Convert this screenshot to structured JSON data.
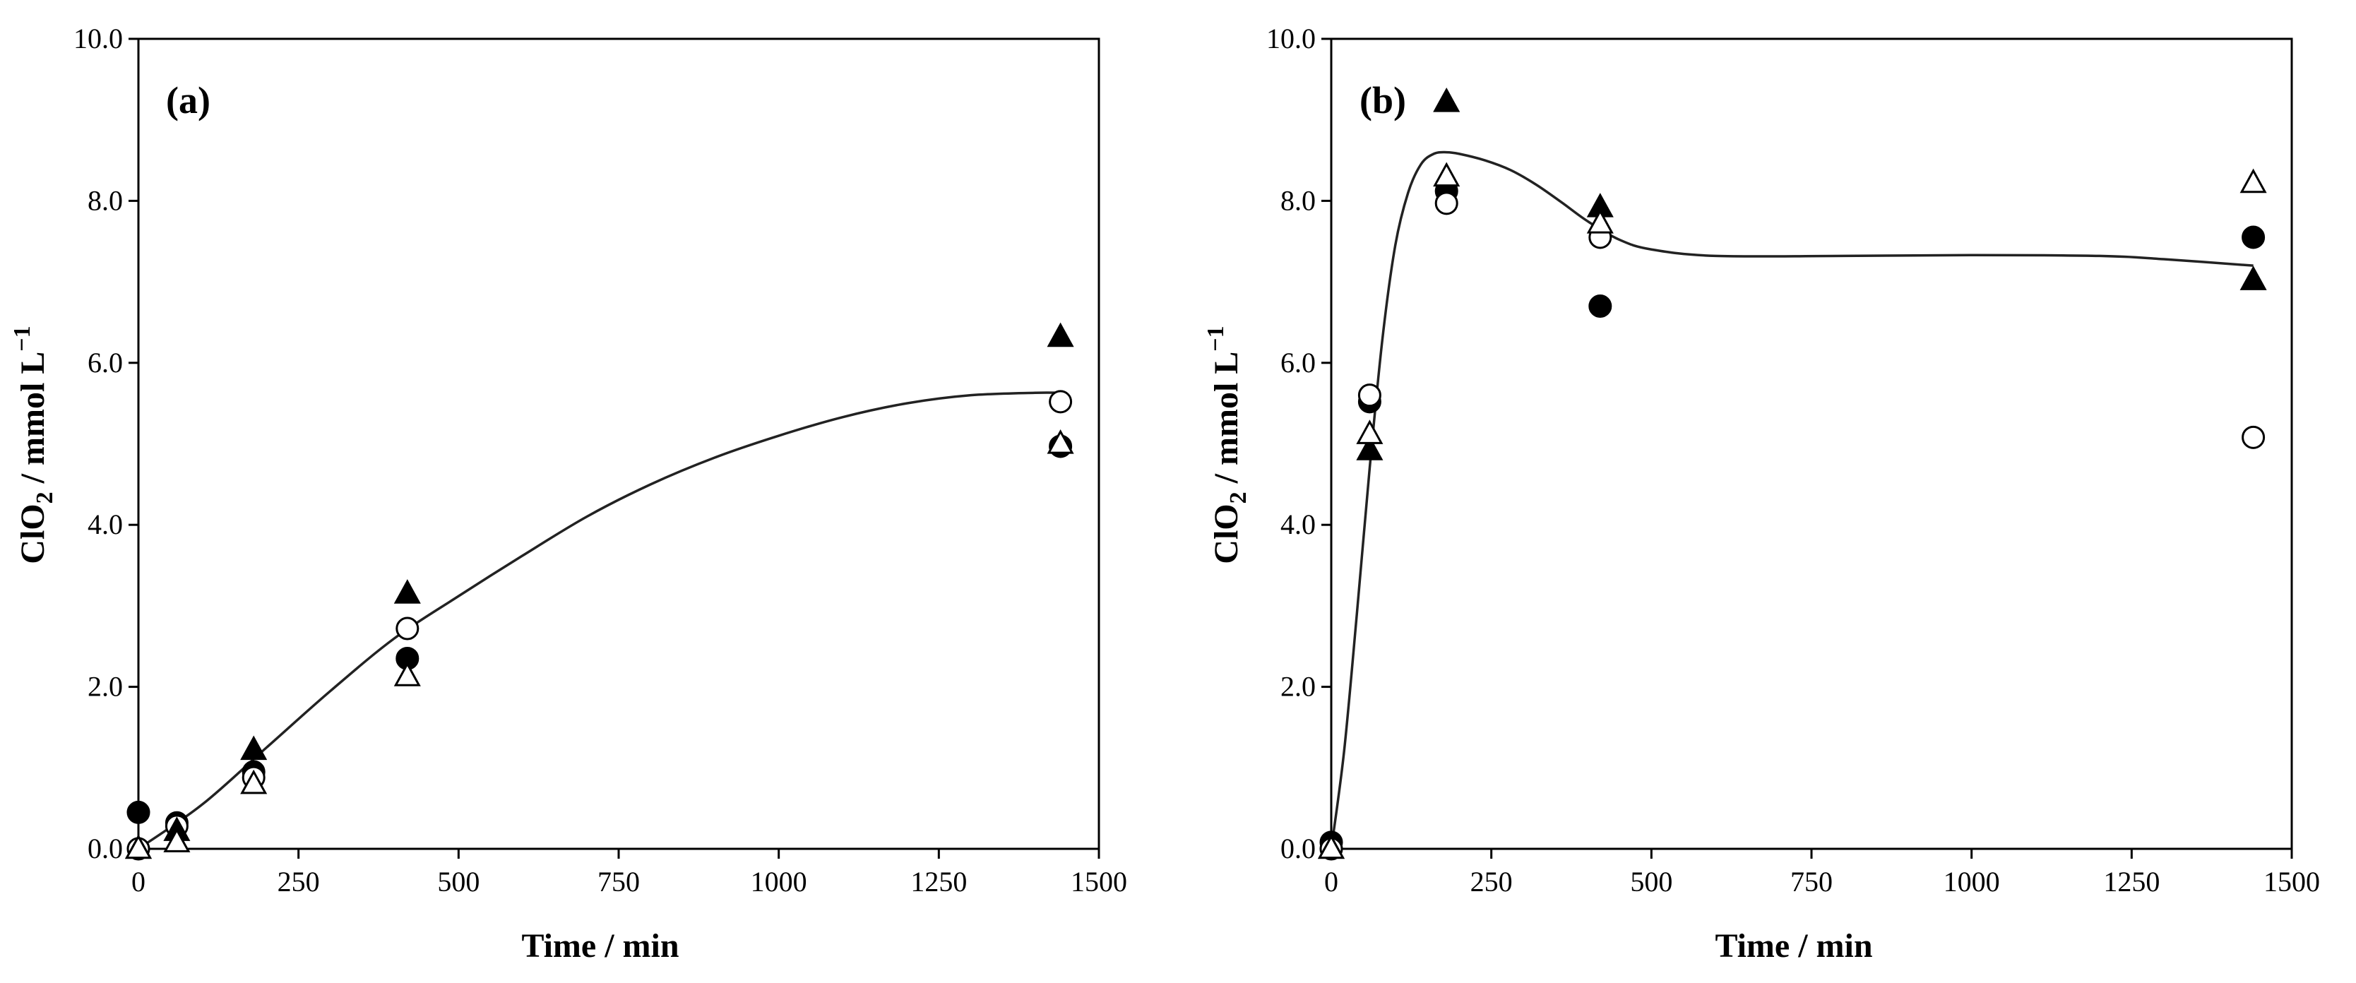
{
  "chart_data": [
    {
      "type": "scatter",
      "panel_label": "(a)",
      "xlabel": "Time / min",
      "ylabel_main": "ClO",
      "ylabel_sub": "2",
      "ylabel_rest": " / mmol L",
      "ylabel_sup": "−1",
      "xlim": [
        0,
        1500
      ],
      "ylim": [
        0,
        10
      ],
      "xticks": [
        0,
        250,
        500,
        750,
        1000,
        1250,
        1500
      ],
      "xtick_labels": [
        "0",
        "250",
        "500",
        "750",
        "1000",
        "1250",
        "1500"
      ],
      "yticks": [
        0,
        2,
        4,
        6,
        8,
        10
      ],
      "ytick_labels": [
        "0.0",
        "2.0",
        "4.0",
        "6.0",
        "8.0",
        "10.0"
      ],
      "series": [
        {
          "name": "filled-circle",
          "marker": "circle",
          "filled": true,
          "x": [
            0,
            60,
            180,
            420,
            1440
          ],
          "y": [
            0.45,
            0.32,
            0.95,
            2.35,
            4.97
          ]
        },
        {
          "name": "open-circle",
          "marker": "circle",
          "filled": false,
          "x": [
            0,
            60,
            180,
            420,
            1440
          ],
          "y": [
            0.0,
            0.28,
            0.88,
            2.72,
            5.52
          ]
        },
        {
          "name": "filled-triangle",
          "marker": "triangle",
          "filled": true,
          "x": [
            0,
            60,
            180,
            420,
            1440
          ],
          "y": [
            0.0,
            0.22,
            1.22,
            3.15,
            6.32
          ]
        },
        {
          "name": "open-triangle",
          "marker": "triangle",
          "filled": false,
          "x": [
            0,
            60,
            180,
            420,
            1440
          ],
          "y": [
            0.0,
            0.08,
            0.8,
            2.13,
            5.0
          ]
        }
      ],
      "fit_line": {
        "x": [
          0,
          100,
          200,
          300,
          400,
          500,
          600,
          700,
          800,
          900,
          1000,
          1100,
          1200,
          1300,
          1400,
          1440
        ],
        "y": [
          0.0,
          0.55,
          1.25,
          1.95,
          2.6,
          3.12,
          3.62,
          4.1,
          4.5,
          4.83,
          5.1,
          5.33,
          5.5,
          5.6,
          5.63,
          5.63
        ]
      }
    },
    {
      "type": "scatter",
      "panel_label": "(b)",
      "xlabel": "Time / min",
      "ylabel_main": "ClO",
      "ylabel_sub": "2",
      "ylabel_rest": " / mmol L",
      "ylabel_sup": "−1",
      "xlim": [
        0,
        1500
      ],
      "ylim": [
        0,
        10
      ],
      "xticks": [
        0,
        250,
        500,
        750,
        1000,
        1250,
        1500
      ],
      "xtick_labels": [
        "0",
        "250",
        "500",
        "750",
        "1000",
        "1250",
        "1500"
      ],
      "yticks": [
        0,
        2,
        4,
        6,
        8,
        10
      ],
      "ytick_labels": [
        "0.0",
        "2.0",
        "4.0",
        "6.0",
        "8.0",
        "10.0"
      ],
      "series": [
        {
          "name": "filled-circle",
          "marker": "circle",
          "filled": true,
          "x": [
            0,
            60,
            180,
            420,
            1440
          ],
          "y": [
            0.08,
            5.52,
            8.12,
            6.7,
            7.55
          ]
        },
        {
          "name": "open-circle",
          "marker": "circle",
          "filled": false,
          "x": [
            0,
            60,
            180,
            420,
            1440
          ],
          "y": [
            0.0,
            5.6,
            7.97,
            7.55,
            5.08
          ]
        },
        {
          "name": "filled-triangle",
          "marker": "triangle",
          "filled": true,
          "x": [
            0,
            60,
            180,
            420,
            1440
          ],
          "y": [
            0.0,
            4.92,
            9.22,
            7.92,
            7.02
          ]
        },
        {
          "name": "open-triangle",
          "marker": "triangle",
          "filled": false,
          "x": [
            0,
            60,
            180,
            420,
            1440
          ],
          "y": [
            0.0,
            5.12,
            8.3,
            7.72,
            8.22
          ]
        }
      ],
      "fit_line": {
        "x": [
          0,
          20,
          40,
          60,
          80,
          100,
          120,
          140,
          160,
          180,
          200,
          240,
          280,
          320,
          360,
          400,
          450,
          500,
          600,
          800,
          1000,
          1200,
          1300,
          1440
        ],
        "y": [
          0.0,
          1.2,
          2.9,
          4.7,
          6.3,
          7.45,
          8.1,
          8.45,
          8.58,
          8.6,
          8.58,
          8.5,
          8.38,
          8.2,
          7.98,
          7.75,
          7.52,
          7.4,
          7.32,
          7.32,
          7.33,
          7.32,
          7.28,
          7.2
        ]
      }
    }
  ]
}
